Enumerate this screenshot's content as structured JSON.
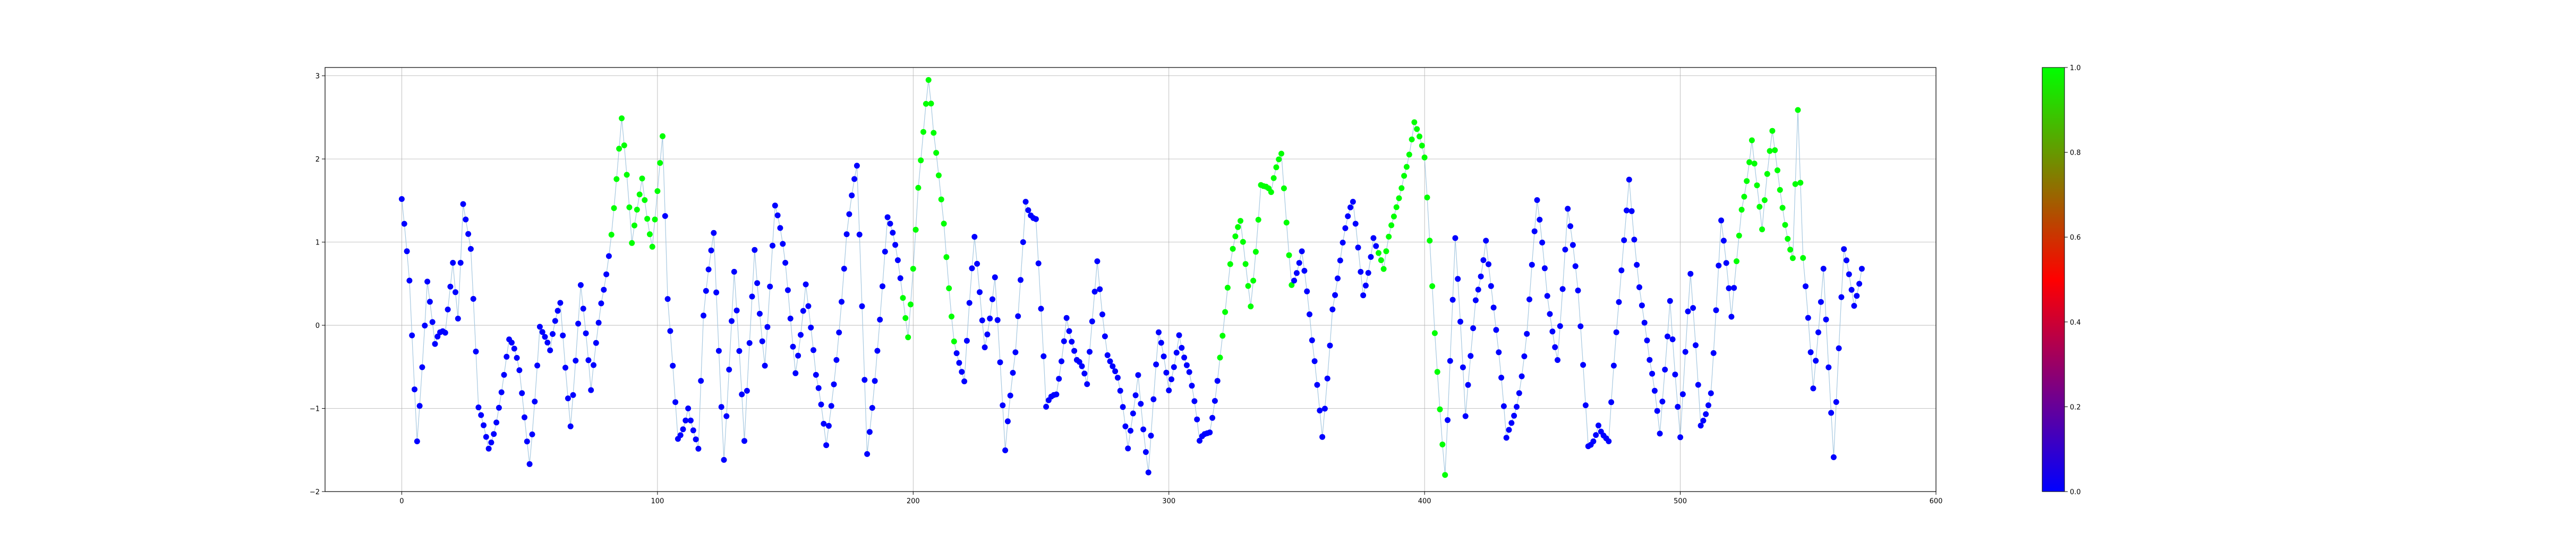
{
  "chart_data": {
    "type": "scatter",
    "title": "",
    "xlabel": "",
    "ylabel": "",
    "xlim": [
      -30,
      600
    ],
    "ylim": [
      -2,
      3.1
    ],
    "xticks": [
      0,
      100,
      200,
      300,
      400,
      500,
      600
    ],
    "yticks": [
      -2,
      -1,
      0,
      1,
      2,
      3
    ],
    "grid": true,
    "legend": "none",
    "line_color": "#a6c8e0",
    "colormap": {
      "stops": [
        "#0000ff",
        "#ff0000",
        "#00ff00"
      ],
      "range": [
        0,
        1
      ],
      "ticks": [
        0.0,
        0.2,
        0.4,
        0.6,
        0.8,
        1.0
      ],
      "tick_labels": [
        "0.0",
        "0.2",
        "0.4",
        "0.6",
        "0.8",
        "1.0"
      ]
    },
    "highlight_color": "#00ff00",
    "base_color": "#0000ff",
    "highlight_ranges": [
      [
        82,
        102
      ],
      [
        196,
        216
      ],
      [
        320,
        348
      ],
      [
        382,
        408
      ],
      [
        522,
        548
      ]
    ],
    "anchors_x": [
      0,
      3,
      6,
      10,
      13,
      17,
      20,
      22,
      24,
      27,
      30,
      34,
      38,
      42,
      46,
      50,
      54,
      58,
      62,
      66,
      70,
      74,
      78,
      82,
      86,
      90,
      94,
      98,
      102,
      104,
      108,
      112,
      116,
      118,
      122,
      126,
      130,
      134,
      138,
      142,
      146,
      150,
      154,
      158,
      162,
      166,
      170,
      174,
      178,
      182,
      186,
      190,
      194,
      198,
      202,
      206,
      208,
      212,
      216,
      220,
      224,
      228,
      232,
      236,
      240,
      244,
      248,
      252,
      256,
      260,
      264,
      268,
      272,
      276,
      280,
      284,
      288,
      292,
      296,
      300,
      304,
      308,
      312,
      316,
      320,
      324,
      328,
      332,
      336,
      340,
      344,
      348,
      352,
      356,
      360,
      364,
      368,
      372,
      376,
      380,
      384,
      388,
      392,
      396,
      400,
      404,
      408,
      412,
      416,
      420,
      424,
      428,
      432,
      436,
      440,
      444,
      448,
      452,
      456,
      460,
      464,
      468,
      472,
      476,
      480,
      484,
      488,
      492,
      496,
      500,
      504,
      508,
      512,
      516,
      520,
      524,
      528,
      532,
      536,
      540,
      544,
      546,
      548,
      552,
      556,
      560,
      564,
      568,
      571
    ],
    "anchors_y": [
      1.3,
      0.5,
      -1.2,
      0.6,
      -0.4,
      -0.2,
      0.9,
      0.3,
      1.6,
      0.8,
      -1.2,
      -1.4,
      -0.8,
      -0.3,
      -0.7,
      -1.5,
      0.1,
      -0.5,
      0.2,
      -1.0,
      0.5,
      -1.0,
      0.3,
      1.3,
      2.4,
      0.8,
      1.9,
      1.1,
      2.1,
      0.1,
      -1.3,
      -0.8,
      -1.6,
      -0.1,
      1.1,
      -1.4,
      0.6,
      -1.6,
      1.0,
      -0.3,
      1.3,
      0.6,
      -0.4,
      0.6,
      -0.8,
      -1.5,
      -0.2,
      1.1,
      1.7,
      -1.5,
      -0.1,
      1.2,
      0.6,
      0.0,
      1.8,
      2.8,
      2.1,
      1.3,
      0.0,
      -0.8,
      0.9,
      -0.1,
      0.7,
      -1.7,
      -0.4,
      1.7,
      1.3,
      -1.2,
      -0.8,
      0.3,
      -0.5,
      -0.9,
      0.9,
      -0.2,
      -0.8,
      -1.6,
      -0.4,
      -1.7,
      -0.3,
      -0.8,
      0.1,
      -0.6,
      -1.6,
      -1.2,
      -0.2,
      0.6,
      1.1,
      0.4,
      1.8,
      1.4,
      2.0,
      0.7,
      0.9,
      -0.4,
      -1.3,
      0.4,
      0.9,
      1.3,
      0.5,
      1.2,
      0.5,
      1.2,
      2.0,
      2.5,
      1.8,
      -0.1,
      -1.6,
      1.0,
      -1.3,
      0.4,
      1.2,
      -0.2,
      -1.5,
      -0.8,
      0.0,
      1.3,
      0.3,
      -0.2,
      1.4,
      0.2,
      -1.4,
      -1.0,
      -1.5,
      0.1,
      1.9,
      0.6,
      -0.6,
      -1.4,
      0.5,
      -1.3,
      0.4,
      -1.2,
      -0.6,
      1.2,
      -0.1,
      1.5,
      2.4,
      1.0,
      2.2,
      1.6,
      0.9,
      2.5,
      0.6,
      -0.8,
      0.9,
      -1.6,
      0.7,
      0.3,
      0.9
    ]
  }
}
